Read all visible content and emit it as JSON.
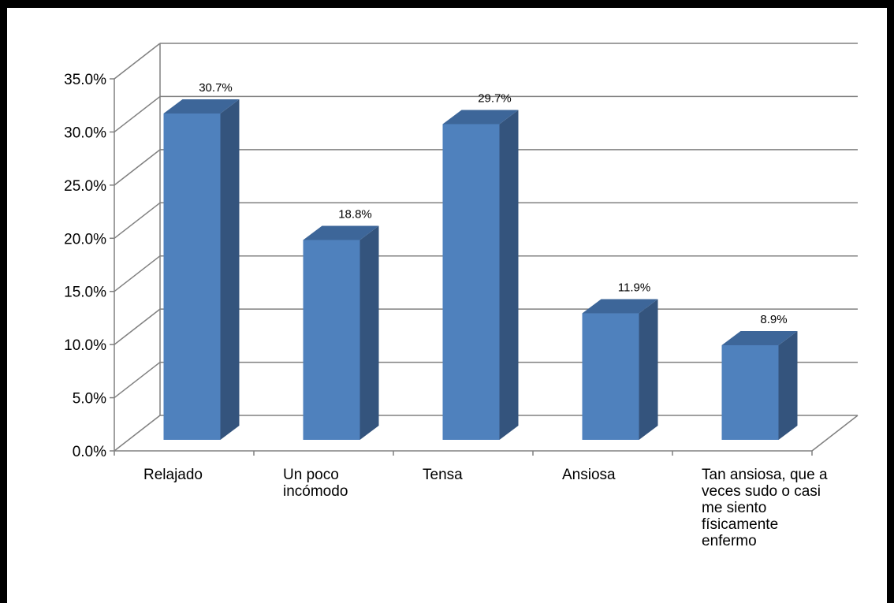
{
  "chart_data": {
    "type": "bar",
    "style": "3d-column",
    "categories": [
      "Relajado",
      "Un poco incómodo",
      "Tensa",
      "Ansiosa",
      "Tan ansiosa, que a veces sudo o casi me siento físicamente enfermo"
    ],
    "values": [
      30.7,
      18.8,
      29.7,
      11.9,
      8.9
    ],
    "data_labels": [
      "30.7%",
      "18.8%",
      "29.7%",
      "11.9%",
      "8.9%"
    ],
    "y_ticks": [
      "0.0%",
      "5.0%",
      "10.0%",
      "15.0%",
      "20.0%",
      "25.0%",
      "30.0%",
      "35.0%"
    ],
    "ylim": [
      0,
      35
    ],
    "grid": true,
    "legend": "none",
    "colors": {
      "bar_front": "#4f81bd",
      "bar_side": "#34547d",
      "bar_top": "#3d6699",
      "grid": "#808080"
    }
  }
}
